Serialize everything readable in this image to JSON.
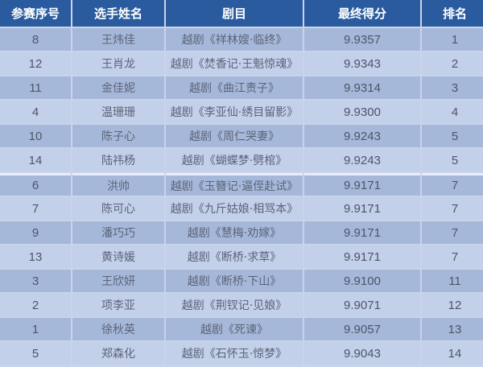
{
  "header": [
    "参赛序号",
    "选手姓名",
    "剧目",
    "最终得分",
    "排名"
  ],
  "rows": [
    [
      "8",
      "王炜佳",
      "越剧《祥林嫂·临终》",
      "9.9357",
      "1"
    ],
    [
      "12",
      "王肖龙",
      "越剧《焚香记·王魁惊魂》",
      "9.9343",
      "2"
    ],
    [
      "11",
      "金佳妮",
      "越剧《曲江责子》",
      "9.9314",
      "3"
    ],
    [
      "4",
      "温珊珊",
      "越剧《李亚仙·绣目留影》",
      "9.9300",
      "4"
    ],
    [
      "10",
      "陈子心",
      "越剧《周仁哭妻》",
      "9.9243",
      "5"
    ],
    [
      "14",
      "陆祎杨",
      "越剧《蝴蝶梦·劈棺》",
      "9.9243",
      "5"
    ],
    [
      "6",
      "洪帅",
      "越剧《玉簪记·逼侄赴试》",
      "9.9171",
      "7"
    ],
    [
      "7",
      "陈可心",
      "越剧《九斤姑娘·相骂本》",
      "9.9171",
      "7"
    ],
    [
      "9",
      "潘巧巧",
      "越剧《慧梅·劝嫁》",
      "9.9171",
      "7"
    ],
    [
      "13",
      "黄诗媛",
      "越剧《断桥·求草》",
      "9.9171",
      "7"
    ],
    [
      "3",
      "王欣妍",
      "越剧《断桥·下山》",
      "9.9100",
      "11"
    ],
    [
      "2",
      "项李亚",
      "越剧《荆钗记·见娘》",
      "9.9071",
      "12"
    ],
    [
      "1",
      "徐秋英",
      "越剧《死谏》",
      "9.9057",
      "13"
    ],
    [
      "5",
      "郑森化",
      "越剧《石怀玉·惊梦》",
      "9.9043",
      "14"
    ]
  ]
}
